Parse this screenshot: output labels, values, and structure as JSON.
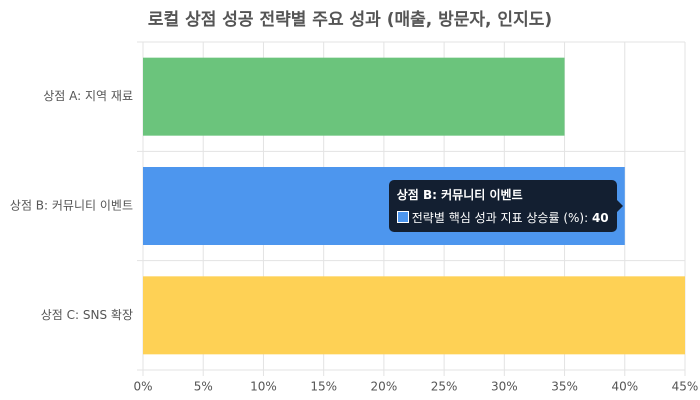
{
  "chart_data": {
    "type": "bar",
    "orientation": "horizontal",
    "title": "로컬 상점 성공 전략별 주요 성과 (매출, 방문자, 인지도)",
    "categories": [
      "상점 A: 지역 재료",
      "상점 B: 커뮤니티 이벤트",
      "상점 C: SNS 확장"
    ],
    "series": [
      {
        "name": "전략별 핵심 성과 지표 상승률 (%)",
        "values": [
          35,
          40,
          45
        ],
        "colors": [
          "#6bc47c",
          "#4d96ee",
          "#fed155"
        ]
      }
    ],
    "xlim": [
      0,
      45
    ],
    "xticks": [
      {
        "value": 0,
        "label": "0%"
      },
      {
        "value": 5,
        "label": "5%"
      },
      {
        "value": 10,
        "label": "10%"
      },
      {
        "value": 15,
        "label": "15%"
      },
      {
        "value": 20,
        "label": "20%"
      },
      {
        "value": 25,
        "label": "25%"
      },
      {
        "value": 30,
        "label": "30%"
      },
      {
        "value": 35,
        "label": "35%"
      },
      {
        "value": 40,
        "label": "40%"
      },
      {
        "value": 45,
        "label": "45%"
      }
    ],
    "grid": true,
    "tooltip": {
      "index": 1
    }
  }
}
